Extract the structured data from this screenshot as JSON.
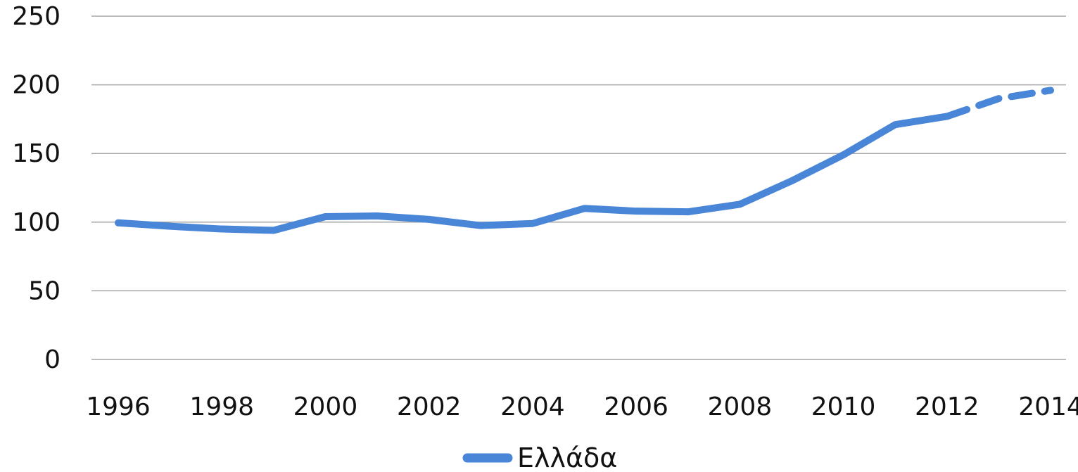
{
  "chart_data": {
    "type": "line",
    "title": "",
    "xlabel": "",
    "ylabel": "",
    "ylim": [
      0,
      250
    ],
    "yticks": [
      0,
      50,
      100,
      150,
      200,
      250
    ],
    "xlim": [
      1996,
      2014
    ],
    "xticks": [
      1996,
      1998,
      2000,
      2002,
      2004,
      2006,
      2008,
      2010,
      2012,
      2014
    ],
    "grid": "horizontal",
    "legend_position": "bottom",
    "series": [
      {
        "name": "Ελλάδα",
        "color": "#4a86d8",
        "x": [
          1996,
          1997,
          1998,
          1999,
          2000,
          2001,
          2002,
          2003,
          2004,
          2005,
          2006,
          2007,
          2008,
          2009,
          2010,
          2011,
          2012
        ],
        "values": [
          99.5,
          97,
          95,
          94,
          104,
          104.5,
          102,
          97.5,
          99,
          110,
          108,
          107.5,
          113,
          130,
          149,
          171,
          177
        ],
        "projection": {
          "x": [
            2012,
            2013,
            2014
          ],
          "values": [
            177,
            190,
            196
          ],
          "style": "dashed"
        }
      }
    ]
  }
}
